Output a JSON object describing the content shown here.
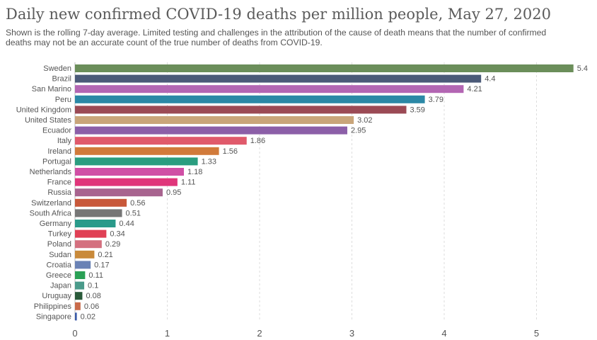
{
  "chart_data": {
    "type": "bar",
    "orientation": "horizontal",
    "title": "Daily new confirmed COVID-19 deaths per million people, May 27, 2020",
    "subtitle": "Shown is the rolling 7-day average. Limited testing and challenges in the attribution of the cause of death means that the number of confirmed deaths may not be an accurate count of the true number of deaths from COVID-19.",
    "xlim": [
      0,
      5.4
    ],
    "xticks": [
      "0",
      "1",
      "2",
      "3",
      "4",
      "5"
    ],
    "grid": true,
    "bars": [
      {
        "label": "Sweden",
        "value": 5.4,
        "display": "5.4",
        "color": "#6b8e5a"
      },
      {
        "label": "Brazil",
        "value": 4.4,
        "display": "4.4",
        "color": "#4b5a78"
      },
      {
        "label": "San Marino",
        "value": 4.21,
        "display": "4.21",
        "color": "#b366b3"
      },
      {
        "label": "Peru",
        "value": 3.79,
        "display": "3.79",
        "color": "#2b88a6"
      },
      {
        "label": "United Kingdom",
        "value": 3.59,
        "display": "3.59",
        "color": "#9b4a55"
      },
      {
        "label": "United States",
        "value": 3.02,
        "display": "3.02",
        "color": "#c9a57a"
      },
      {
        "label": "Ecuador",
        "value": 2.95,
        "display": "2.95",
        "color": "#8c5fa8"
      },
      {
        "label": "Italy",
        "value": 1.86,
        "display": "1.86",
        "color": "#e05a6b"
      },
      {
        "label": "Ireland",
        "value": 1.56,
        "display": "1.56",
        "color": "#d17a3a"
      },
      {
        "label": "Portugal",
        "value": 1.33,
        "display": "1.33",
        "color": "#2a9d7f"
      },
      {
        "label": "Netherlands",
        "value": 1.18,
        "display": "1.18",
        "color": "#d04fa5"
      },
      {
        "label": "France",
        "value": 1.11,
        "display": "1.11",
        "color": "#e0357a"
      },
      {
        "label": "Russia",
        "value": 0.95,
        "display": "0.95",
        "color": "#a8648f"
      },
      {
        "label": "Switzerland",
        "value": 0.56,
        "display": "0.56",
        "color": "#c8583a"
      },
      {
        "label": "South Africa",
        "value": 0.51,
        "display": "0.51",
        "color": "#767676"
      },
      {
        "label": "Germany",
        "value": 0.44,
        "display": "0.44",
        "color": "#2a9a8a"
      },
      {
        "label": "Turkey",
        "value": 0.34,
        "display": "0.34",
        "color": "#e04055"
      },
      {
        "label": "Poland",
        "value": 0.29,
        "display": "0.29",
        "color": "#d4707f"
      },
      {
        "label": "Sudan",
        "value": 0.21,
        "display": "0.21",
        "color": "#c98a3a"
      },
      {
        "label": "Croatia",
        "value": 0.17,
        "display": "0.17",
        "color": "#6a82b5"
      },
      {
        "label": "Greece",
        "value": 0.11,
        "display": "0.11",
        "color": "#2aa055"
      },
      {
        "label": "Japan",
        "value": 0.1,
        "display": "0.1",
        "color": "#4a9a8a"
      },
      {
        "label": "Uruguay",
        "value": 0.08,
        "display": "0.08",
        "color": "#2a5a3a"
      },
      {
        "label": "Philippines",
        "value": 0.06,
        "display": "0.06",
        "color": "#c86a4a"
      },
      {
        "label": "Singapore",
        "value": 0.02,
        "display": "0.02",
        "color": "#3a5aa8"
      }
    ]
  }
}
